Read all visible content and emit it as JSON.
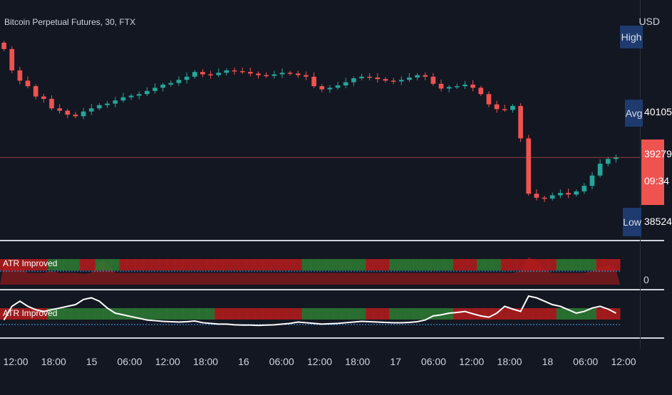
{
  "header": {
    "symbol": "Bitcoin Perpetual Futures, 30, FTX",
    "currency": "USD"
  },
  "price_scale": {
    "labels": {
      "high": "High",
      "avg": "Avg",
      "avg_value": "40105",
      "current_value": "39279",
      "countdown": "09:34",
      "low": "Low",
      "low_value": "38524"
    }
  },
  "indicators": [
    {
      "label": "ATR Improved"
    },
    {
      "label": "ATR Improved"
    }
  ],
  "indicator_scale": {
    "zero_label": "0"
  },
  "colors": {
    "background": "#131722",
    "up": "#26a69a",
    "down": "#ef5350",
    "band_green": "#2e7d32",
    "band_red": "#b71c1c",
    "atr_line": "#ffffff",
    "baseline": "#42a5f5",
    "price_line": "#ef5350",
    "badge": "#1e3a6e"
  },
  "chart_data": [
    {
      "type": "line",
      "title": "Bitcoin Perpetual Futures, 30, FTX",
      "ylabel": "USD",
      "x_ticks": [
        "12:00",
        "18:00",
        "15",
        "06:00",
        "12:00",
        "18:00",
        "16",
        "06:00",
        "12:00",
        "18:00",
        "17",
        "06:00",
        "12:00",
        "18:00",
        "18",
        "06:00",
        "12:00"
      ],
      "ylim": [
        38300,
        41000
      ],
      "horizontal_line": 39279,
      "series": [
        {
          "values": [
            40650,
            40380,
            40250,
            40180,
            40050,
            40020,
            39900,
            39870,
            39820,
            39800,
            39860,
            39900,
            39940,
            39960,
            40000,
            40040,
            40060,
            40080,
            40120,
            40160,
            40200,
            40220,
            40260,
            40300,
            40360,
            40330,
            40320,
            40350,
            40380,
            40370,
            40360,
            40340,
            40320,
            40310,
            40330,
            40350,
            40340,
            40320,
            40300,
            40180,
            40140,
            40160,
            40190,
            40230,
            40280,
            40300,
            40290,
            40270,
            40250,
            40240,
            40260,
            40290,
            40320,
            40300,
            40210,
            40150,
            40170,
            40180,
            40200,
            40160,
            40080,
            39950,
            39890,
            39880,
            39930,
            39520,
            38820,
            38770,
            38760,
            38800,
            38830,
            38810,
            38850,
            38920,
            39050,
            39200,
            39260,
            39280
          ]
        }
      ]
    },
    {
      "type": "area",
      "series": [
        {
          "values": [
            0.55,
            0.5,
            0.45,
            0.3,
            0.3,
            0.3,
            0.35,
            0.3,
            0.3,
            0.3,
            0.28,
            0.3,
            0.6,
            0.55,
            0.3,
            0.3,
            0.3,
            0.3,
            0.3,
            0.3,
            0.3,
            0.3,
            0.3,
            0.3,
            0.3,
            0.3,
            0.3,
            0.3,
            0.3,
            0.3,
            0.3,
            0.3,
            0.3,
            0.3,
            0.3,
            0.3,
            0.3,
            0.3,
            0.3,
            0.3,
            0.3,
            0.3,
            0.3,
            0.3,
            0.3,
            0.3,
            0.3,
            0.3,
            0.3,
            0.3,
            0.3,
            0.3,
            0.3,
            0.3,
            0.3,
            0.3,
            0.3,
            0.3,
            0.3,
            0.3,
            0.3,
            0.3,
            0.3,
            0.3,
            0.3,
            0.35,
            0.7,
            0.6,
            0.4,
            0.3,
            0.3,
            0.3,
            0.3,
            0.3,
            0.35,
            0.45,
            0.5,
            0.4
          ]
        }
      ]
    },
    {
      "type": "line",
      "series": [
        {
          "values": [
            0.3,
            0.7,
            0.85,
            0.7,
            0.6,
            0.55,
            0.6,
            0.65,
            0.7,
            0.75,
            0.9,
            0.95,
            0.85,
            0.65,
            0.5,
            0.45,
            0.4,
            0.35,
            0.3,
            0.28,
            0.26,
            0.25,
            0.24,
            0.25,
            0.27,
            0.22,
            0.2,
            0.18,
            0.18,
            0.16,
            0.15,
            0.15,
            0.14,
            0.15,
            0.16,
            0.18,
            0.2,
            0.24,
            0.22,
            0.2,
            0.18,
            0.19,
            0.2,
            0.22,
            0.24,
            0.26,
            0.25,
            0.24,
            0.23,
            0.22,
            0.22,
            0.23,
            0.25,
            0.3,
            0.42,
            0.45,
            0.5,
            0.52,
            0.55,
            0.48,
            0.42,
            0.38,
            0.5,
            0.7,
            0.62,
            0.55,
            1.0,
            0.95,
            0.85,
            0.75,
            0.7,
            0.6,
            0.5,
            0.55,
            0.65,
            0.7,
            0.62,
            0.5
          ]
        }
      ]
    }
  ]
}
